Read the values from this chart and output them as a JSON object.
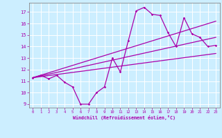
{
  "xlabel": "Windchill (Refroidissement éolien,°C)",
  "bg_color": "#cceeff",
  "line_color": "#aa00aa",
  "grid_color": "#ffffff",
  "x_ticks": [
    0,
    1,
    2,
    3,
    4,
    5,
    6,
    7,
    8,
    9,
    10,
    11,
    12,
    13,
    14,
    15,
    16,
    17,
    18,
    19,
    20,
    21,
    22,
    23
  ],
  "y_ticks": [
    9,
    10,
    11,
    12,
    13,
    14,
    15,
    16,
    17
  ],
  "xlim": [
    -0.5,
    23.5
  ],
  "ylim": [
    8.7,
    17.8
  ],
  "series": [
    {
      "x": [
        0,
        1,
        2,
        3,
        4,
        5,
        6,
        7,
        8,
        9,
        10,
        11,
        12,
        13,
        14,
        15,
        16,
        17,
        18,
        19,
        20,
        21,
        22,
        23
      ],
      "y": [
        11.3,
        11.5,
        11.2,
        11.5,
        10.9,
        10.5,
        9.0,
        9.0,
        10.0,
        10.5,
        13.0,
        11.8,
        14.5,
        17.1,
        17.4,
        16.8,
        16.7,
        15.2,
        14.0,
        16.5,
        15.1,
        14.8,
        14.0,
        14.1
      ]
    },
    {
      "x": [
        0,
        23
      ],
      "y": [
        11.3,
        13.4
      ]
    },
    {
      "x": [
        0,
        23
      ],
      "y": [
        11.3,
        14.8
      ]
    },
    {
      "x": [
        0,
        23
      ],
      "y": [
        11.3,
        16.2
      ]
    }
  ]
}
